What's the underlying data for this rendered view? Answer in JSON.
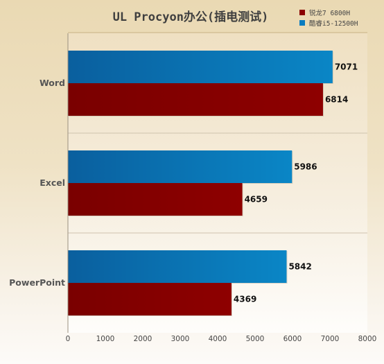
{
  "colors": {
    "series_1": "#8b0000",
    "series_2": "#0a7cc0"
  },
  "chart_data": {
    "type": "bar",
    "orientation": "horizontal",
    "title": "UL Procyon办公(插电测试)",
    "categories": [
      "Word",
      "Excel",
      "PowerPoint"
    ],
    "series": [
      {
        "name": "锐龙7 6800H",
        "values": [
          6814,
          4659,
          4369
        ]
      },
      {
        "name": "酷睿i5-12500H",
        "values": [
          7071,
          5986,
          5842
        ]
      }
    ],
    "xlim": [
      0,
      8000
    ],
    "xticks": [
      0,
      1000,
      2000,
      3000,
      4000,
      5000,
      6000,
      7000,
      8000
    ],
    "legend_position": "top-right",
    "grid": false
  }
}
